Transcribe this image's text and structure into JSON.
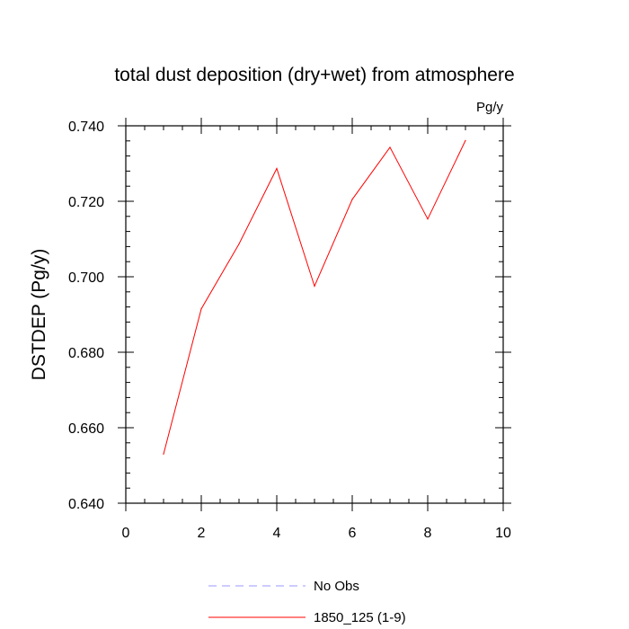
{
  "chart_data": {
    "type": "line",
    "title": "total dust deposition (dry+wet) from atmosphere",
    "units": "Pg/y",
    "ylabel": "DSTDEP  (Pg/y)",
    "xlabel": "",
    "xlim": [
      0,
      10
    ],
    "ylim": [
      0.64,
      0.74
    ],
    "x_ticks": [
      0,
      2,
      4,
      6,
      8,
      10
    ],
    "x_tick_labels": [
      "0",
      "2",
      "4",
      "6",
      "8",
      "10"
    ],
    "y_ticks": [
      0.64,
      0.66,
      0.68,
      0.7,
      0.72,
      0.74
    ],
    "y_tick_labels": [
      "0.640",
      "0.660",
      "0.680",
      "0.700",
      "0.720",
      "0.740"
    ],
    "grid": false,
    "legend_position": "bottom-center",
    "series": [
      {
        "name": "1850_125 (1-9)",
        "color": "#ff0000",
        "dash": "solid",
        "x": [
          1,
          2,
          3,
          4,
          5,
          6,
          7,
          8,
          9
        ],
        "values": [
          0.653,
          0.6915,
          0.7087,
          0.7287,
          0.6975,
          0.7205,
          0.7343,
          0.7153,
          0.7361
        ]
      }
    ],
    "legend": [
      {
        "label": "No Obs",
        "color": "#9999ff",
        "dash": "dashed"
      },
      {
        "label": "1850_125 (1-9)",
        "color": "#ff0000",
        "dash": "solid"
      }
    ]
  }
}
